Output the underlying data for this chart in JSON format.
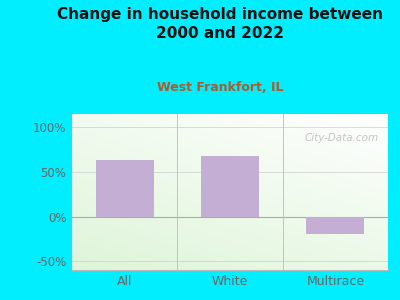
{
  "title": "Change in household income between\n2000 and 2022",
  "subtitle": "West Frankfort, IL",
  "categories": [
    "All",
    "White",
    "Multirace"
  ],
  "values": [
    63,
    68,
    -20
  ],
  "bar_color": "#c4aed4",
  "title_color": "#111111",
  "subtitle_color": "#b05a2a",
  "background_color": "#00eeff",
  "ylabel_color": "#666666",
  "tick_label_color": "#666666",
  "ylim": [
    -60,
    115
  ],
  "yticks": [
    -50,
    0,
    50,
    100
  ],
  "ytick_labels": [
    "-50%",
    "0%",
    "50%",
    "100%"
  ],
  "grid_color": "#cccccc",
  "grid_alpha": 0.8,
  "watermark": "City-Data.com",
  "bar_width": 0.55,
  "plot_bg_left": "#f0f8ee",
  "plot_bg_right": "#ffffff"
}
